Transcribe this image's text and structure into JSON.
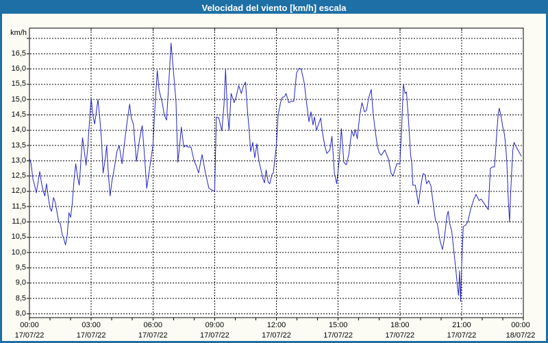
{
  "window": {
    "title": "Velocidad del viento [km/h] escala"
  },
  "colors": {
    "titlebar_bg": "#1d6fa5",
    "title_text": "#ffffff",
    "page_bg": "#fcfcf4",
    "plot_bg": "#ffffff",
    "frame": "#000000",
    "grid": "#000000",
    "tick_text": "#000000",
    "line": "#2222c0"
  },
  "chart_data": {
    "type": "line",
    "title": "Velocidad del viento [km/h] escala",
    "ylabel": "km/h",
    "xlabel": "",
    "x_unit": "hours from 17/07/22 00:00",
    "xlim": [
      0,
      24
    ],
    "ylim": [
      8.0,
      17.0
    ],
    "grid": "black dashed; horizontal every 0.5 km/h (8,0 to 17,0), vertical every 3 h; hourly minor ticks on bottom axis",
    "legend": "none",
    "y_ticks": [
      {
        "v": 16.5,
        "label": "16,5"
      },
      {
        "v": 16.0,
        "label": "16,0"
      },
      {
        "v": 15.5,
        "label": "15,5"
      },
      {
        "v": 15.0,
        "label": "15,0"
      },
      {
        "v": 14.5,
        "label": "14,5"
      },
      {
        "v": 14.0,
        "label": "14,0"
      },
      {
        "v": 13.5,
        "label": "13,5"
      },
      {
        "v": 13.0,
        "label": "13,0"
      },
      {
        "v": 12.5,
        "label": "12,5"
      },
      {
        "v": 12.0,
        "label": "12,0"
      },
      {
        "v": 11.5,
        "label": "11,5"
      },
      {
        "v": 11.0,
        "label": "11,0"
      },
      {
        "v": 10.5,
        "label": "10,5"
      },
      {
        "v": 10.0,
        "label": "10,0"
      },
      {
        "v": 9.5,
        "label": "9,5"
      },
      {
        "v": 9.0,
        "label": "9,0"
      },
      {
        "v": 8.5,
        "label": "8,5"
      },
      {
        "v": 8.0,
        "label": "8,0"
      }
    ],
    "x_ticks": [
      {
        "hour": 0,
        "time": "00:00",
        "date": "17/07/22"
      },
      {
        "hour": 3,
        "time": "03:00",
        "date": "17/07/22"
      },
      {
        "hour": 6,
        "time": "06:00",
        "date": "17/07/22"
      },
      {
        "hour": 9,
        "time": "09:00",
        "date": "17/07/22"
      },
      {
        "hour": 12,
        "time": "12:00",
        "date": "17/07/22"
      },
      {
        "hour": 15,
        "time": "15:00",
        "date": "17/07/22"
      },
      {
        "hour": 18,
        "time": "18:00",
        "date": "17/07/22"
      },
      {
        "hour": 21,
        "time": "21:00",
        "date": "17/07/22"
      },
      {
        "hour": 24,
        "time": "00:00",
        "date": "18/07/22"
      }
    ],
    "series": [
      {
        "name": "Velocidad del viento",
        "points": [
          [
            0.0,
            13.1
          ],
          [
            0.08,
            12.9
          ],
          [
            0.17,
            12.4
          ],
          [
            0.25,
            12.2
          ],
          [
            0.33,
            11.95
          ],
          [
            0.42,
            12.3
          ],
          [
            0.5,
            12.65
          ],
          [
            0.58,
            12.3
          ],
          [
            0.67,
            12.0
          ],
          [
            0.75,
            11.85
          ],
          [
            0.83,
            12.25
          ],
          [
            0.92,
            11.8
          ],
          [
            1.0,
            11.45
          ],
          [
            1.08,
            11.35
          ],
          [
            1.17,
            11.8
          ],
          [
            1.25,
            11.65
          ],
          [
            1.33,
            11.35
          ],
          [
            1.42,
            11.0
          ],
          [
            1.5,
            10.95
          ],
          [
            1.58,
            10.62
          ],
          [
            1.67,
            10.45
          ],
          [
            1.75,
            10.25
          ],
          [
            1.83,
            10.55
          ],
          [
            1.92,
            11.3
          ],
          [
            2.0,
            11.15
          ],
          [
            2.08,
            11.6
          ],
          [
            2.17,
            12.4
          ],
          [
            2.25,
            12.9
          ],
          [
            2.33,
            12.5
          ],
          [
            2.42,
            12.2
          ],
          [
            2.5,
            13.0
          ],
          [
            2.58,
            13.75
          ],
          [
            2.67,
            13.3
          ],
          [
            2.75,
            12.85
          ],
          [
            2.83,
            13.4
          ],
          [
            2.92,
            14.3
          ],
          [
            3.0,
            15.05
          ],
          [
            3.08,
            14.5
          ],
          [
            3.17,
            14.2
          ],
          [
            3.25,
            14.6
          ],
          [
            3.33,
            15.0
          ],
          [
            3.42,
            14.4
          ],
          [
            3.5,
            13.7
          ],
          [
            3.58,
            12.6
          ],
          [
            3.67,
            13.0
          ],
          [
            3.75,
            13.5
          ],
          [
            3.83,
            12.6
          ],
          [
            3.92,
            11.85
          ],
          [
            4.0,
            12.3
          ],
          [
            4.08,
            12.6
          ],
          [
            4.17,
            12.95
          ],
          [
            4.25,
            13.3
          ],
          [
            4.36,
            13.5
          ],
          [
            4.5,
            12.9
          ],
          [
            4.62,
            13.6
          ],
          [
            4.75,
            14.3
          ],
          [
            4.87,
            14.85
          ],
          [
            4.95,
            14.4
          ],
          [
            5.05,
            14.2
          ],
          [
            5.2,
            12.98
          ],
          [
            5.35,
            13.7
          ],
          [
            5.48,
            14.15
          ],
          [
            5.6,
            13.1
          ],
          [
            5.7,
            12.1
          ],
          [
            5.85,
            12.8
          ],
          [
            6.0,
            13.5
          ],
          [
            6.1,
            14.8
          ],
          [
            6.21,
            15.95
          ],
          [
            6.3,
            15.3
          ],
          [
            6.45,
            14.9
          ],
          [
            6.55,
            14.5
          ],
          [
            6.66,
            14.33
          ],
          [
            6.75,
            15.3
          ],
          [
            6.88,
            16.85
          ],
          [
            7.0,
            15.9
          ],
          [
            7.12,
            14.95
          ],
          [
            7.21,
            12.95
          ],
          [
            7.3,
            13.5
          ],
          [
            7.38,
            14.1
          ],
          [
            7.5,
            13.45
          ],
          [
            7.6,
            13.5
          ],
          [
            7.7,
            13.45
          ],
          [
            7.85,
            13.45
          ],
          [
            8.0,
            13.0
          ],
          [
            8.1,
            12.85
          ],
          [
            8.22,
            12.6
          ],
          [
            8.39,
            13.2
          ],
          [
            8.55,
            12.6
          ],
          [
            8.72,
            12.1
          ],
          [
            8.85,
            12.05
          ],
          [
            9.0,
            12.0
          ],
          [
            9.08,
            14.43
          ],
          [
            9.2,
            14.4
          ],
          [
            9.35,
            13.98
          ],
          [
            9.45,
            14.8
          ],
          [
            9.53,
            15.98
          ],
          [
            9.62,
            14.6
          ],
          [
            9.7,
            14.0
          ],
          [
            9.8,
            15.2
          ],
          [
            9.95,
            14.9
          ],
          [
            10.05,
            15.1
          ],
          [
            10.17,
            15.46
          ],
          [
            10.3,
            15.2
          ],
          [
            10.4,
            15.45
          ],
          [
            10.5,
            15.57
          ],
          [
            10.6,
            14.6
          ],
          [
            10.68,
            14.0
          ],
          [
            10.75,
            13.3
          ],
          [
            10.85,
            13.6
          ],
          [
            10.95,
            13.1
          ],
          [
            11.05,
            13.55
          ],
          [
            11.15,
            13.0
          ],
          [
            11.25,
            12.7
          ],
          [
            11.35,
            12.4
          ],
          [
            11.42,
            12.28
          ],
          [
            11.5,
            12.7
          ],
          [
            11.6,
            12.3
          ],
          [
            11.68,
            12.25
          ],
          [
            11.78,
            12.55
          ],
          [
            11.85,
            12.6
          ],
          [
            12.0,
            13.5
          ],
          [
            12.08,
            14.47
          ],
          [
            12.2,
            14.9
          ],
          [
            12.28,
            15.07
          ],
          [
            12.4,
            15.1
          ],
          [
            12.47,
            15.2
          ],
          [
            12.6,
            14.9
          ],
          [
            12.75,
            14.95
          ],
          [
            12.85,
            14.95
          ],
          [
            12.98,
            15.87
          ],
          [
            13.1,
            16.02
          ],
          [
            13.2,
            16.0
          ],
          [
            13.35,
            15.55
          ],
          [
            13.5,
            14.7
          ],
          [
            13.58,
            14.28
          ],
          [
            13.68,
            14.6
          ],
          [
            13.78,
            14.17
          ],
          [
            13.85,
            14.43
          ],
          [
            13.95,
            14.0
          ],
          [
            14.05,
            14.2
          ],
          [
            14.15,
            14.4
          ],
          [
            14.25,
            13.87
          ],
          [
            14.35,
            13.5
          ],
          [
            14.45,
            13.24
          ],
          [
            14.6,
            13.35
          ],
          [
            14.7,
            13.8
          ],
          [
            14.82,
            12.6
          ],
          [
            14.93,
            12.25
          ],
          [
            15.05,
            13.0
          ],
          [
            15.16,
            14.05
          ],
          [
            15.28,
            12.95
          ],
          [
            15.4,
            12.87
          ],
          [
            15.52,
            13.2
          ],
          [
            15.66,
            13.98
          ],
          [
            15.76,
            13.8
          ],
          [
            15.83,
            14.02
          ],
          [
            15.93,
            13.72
          ],
          [
            16.05,
            14.5
          ],
          [
            16.16,
            14.9
          ],
          [
            16.28,
            14.6
          ],
          [
            16.38,
            14.65
          ],
          [
            16.48,
            15.05
          ],
          [
            16.61,
            15.33
          ],
          [
            16.7,
            14.55
          ],
          [
            16.8,
            14.0
          ],
          [
            16.9,
            13.5
          ],
          [
            17.0,
            13.25
          ],
          [
            17.1,
            13.18
          ],
          [
            17.27,
            13.35
          ],
          [
            17.45,
            13.05
          ],
          [
            17.57,
            12.6
          ],
          [
            17.67,
            12.5
          ],
          [
            17.85,
            12.9
          ],
          [
            18.0,
            12.9
          ],
          [
            18.08,
            14.0
          ],
          [
            18.17,
            15.5
          ],
          [
            18.25,
            15.2
          ],
          [
            18.32,
            15.25
          ],
          [
            18.4,
            14.5
          ],
          [
            18.45,
            14.0
          ],
          [
            18.52,
            13.2
          ],
          [
            18.58,
            12.9
          ],
          [
            18.63,
            12.2
          ],
          [
            18.75,
            12.2
          ],
          [
            18.9,
            11.58
          ],
          [
            19.05,
            12.3
          ],
          [
            19.13,
            12.58
          ],
          [
            19.22,
            12.55
          ],
          [
            19.3,
            12.25
          ],
          [
            19.4,
            12.35
          ],
          [
            19.51,
            12.18
          ],
          [
            19.62,
            11.6
          ],
          [
            19.73,
            11.05
          ],
          [
            19.82,
            10.95
          ],
          [
            19.95,
            10.4
          ],
          [
            20.07,
            10.1
          ],
          [
            20.15,
            10.4
          ],
          [
            20.29,
            11.2
          ],
          [
            20.35,
            11.35
          ],
          [
            20.42,
            10.95
          ],
          [
            20.52,
            10.7
          ],
          [
            20.63,
            10.0
          ],
          [
            20.74,
            9.3
          ],
          [
            20.8,
            8.85
          ],
          [
            20.85,
            8.6
          ],
          [
            20.9,
            9.4
          ],
          [
            20.95,
            8.4
          ],
          [
            21.02,
            9.9
          ],
          [
            21.08,
            10.85
          ],
          [
            21.2,
            10.9
          ],
          [
            21.3,
            11.0
          ],
          [
            21.45,
            11.45
          ],
          [
            21.6,
            11.75
          ],
          [
            21.7,
            11.9
          ],
          [
            21.85,
            11.7
          ],
          [
            21.95,
            11.75
          ],
          [
            22.1,
            11.6
          ],
          [
            22.2,
            11.5
          ],
          [
            22.3,
            11.4
          ],
          [
            22.4,
            12.75
          ],
          [
            22.5,
            12.8
          ],
          [
            22.6,
            12.8
          ],
          [
            22.72,
            14.0
          ],
          [
            22.78,
            14.53
          ],
          [
            22.83,
            14.72
          ],
          [
            22.93,
            14.4
          ],
          [
            23.0,
            14.1
          ],
          [
            23.08,
            13.87
          ],
          [
            23.15,
            13.43
          ],
          [
            23.2,
            12.9
          ],
          [
            23.27,
            11.7
          ],
          [
            23.33,
            11.0
          ],
          [
            23.38,
            11.9
          ],
          [
            23.43,
            12.6
          ],
          [
            23.49,
            13.35
          ],
          [
            23.55,
            13.6
          ],
          [
            23.67,
            13.43
          ],
          [
            23.78,
            13.3
          ],
          [
            23.9,
            13.15
          ]
        ]
      }
    ]
  }
}
